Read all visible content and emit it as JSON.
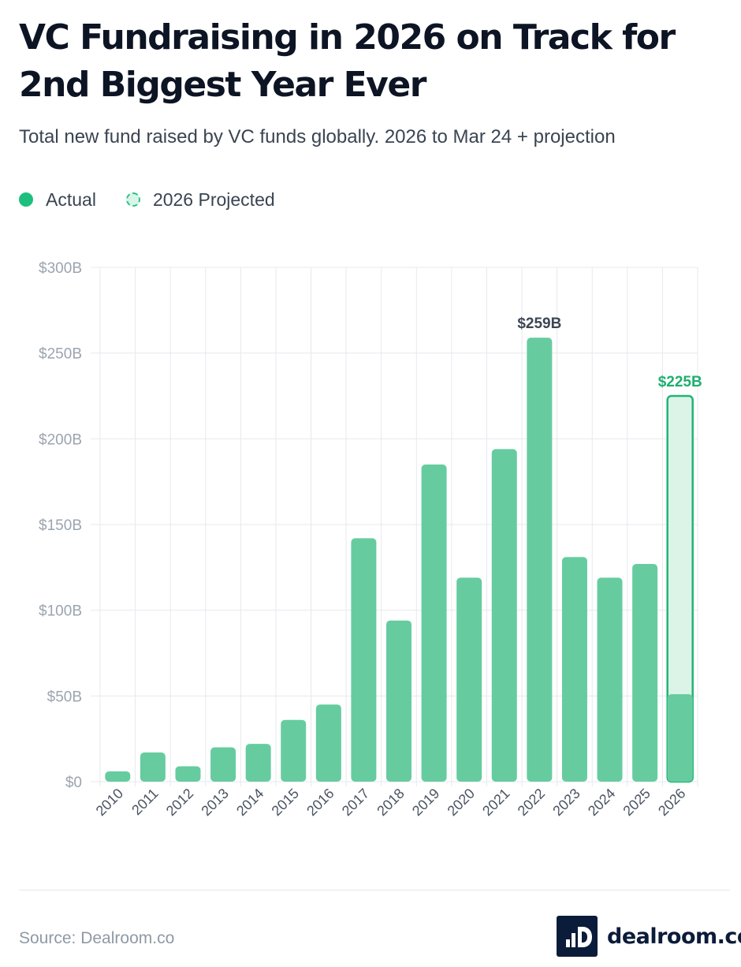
{
  "header": {
    "title": "VC Fundraising in 2026 on Track for 2nd Biggest Year Ever",
    "subtitle": "Total new fund raised by VC funds globally. 2026 to Mar 24 + projection"
  },
  "legend": {
    "actual_label": "Actual",
    "projected_label": "2026 Projected"
  },
  "footer": {
    "source": "Source: Dealroom.co",
    "brand": "dealroom.co"
  },
  "colors": {
    "actual": "#66cc9f",
    "projected_fill": "#dcf4e8",
    "projected_stroke": "#22b575",
    "highlight_label": "#1fae6f",
    "peak_label": "#3c4654",
    "grid": "#e6e9ee",
    "tick": "#9ba4b0"
  },
  "chart_data": {
    "type": "bar",
    "title": "VC Fundraising in 2026 on Track for 2nd Biggest Year Ever",
    "xlabel": "",
    "ylabel": "",
    "ylim": [
      0,
      300
    ],
    "y_ticks": [
      0,
      50,
      100,
      150,
      200,
      250,
      300
    ],
    "y_tick_labels": [
      "$0",
      "$50B",
      "$100B",
      "$150B",
      "$200B",
      "$250B",
      "$300B"
    ],
    "categories": [
      "2010",
      "2011",
      "2012",
      "2013",
      "2014",
      "2015",
      "2016",
      "2017",
      "2018",
      "2019",
      "2020",
      "2021",
      "2022",
      "2023",
      "2024",
      "2025",
      "2026"
    ],
    "series": [
      {
        "name": "Actual",
        "values": [
          6,
          17,
          9,
          20,
          22,
          36,
          45,
          142,
          94,
          185,
          119,
          194,
          259,
          131,
          119,
          127,
          51
        ]
      },
      {
        "name": "2026 Projected",
        "values": [
          null,
          null,
          null,
          null,
          null,
          null,
          null,
          null,
          null,
          null,
          null,
          null,
          null,
          null,
          null,
          null,
          225
        ]
      }
    ],
    "annotations": [
      {
        "category": "2022",
        "text": "$259B",
        "style": "peak"
      },
      {
        "category": "2026",
        "text": "$225B",
        "style": "projected"
      }
    ],
    "grid": true,
    "legend_position": "top-left"
  }
}
